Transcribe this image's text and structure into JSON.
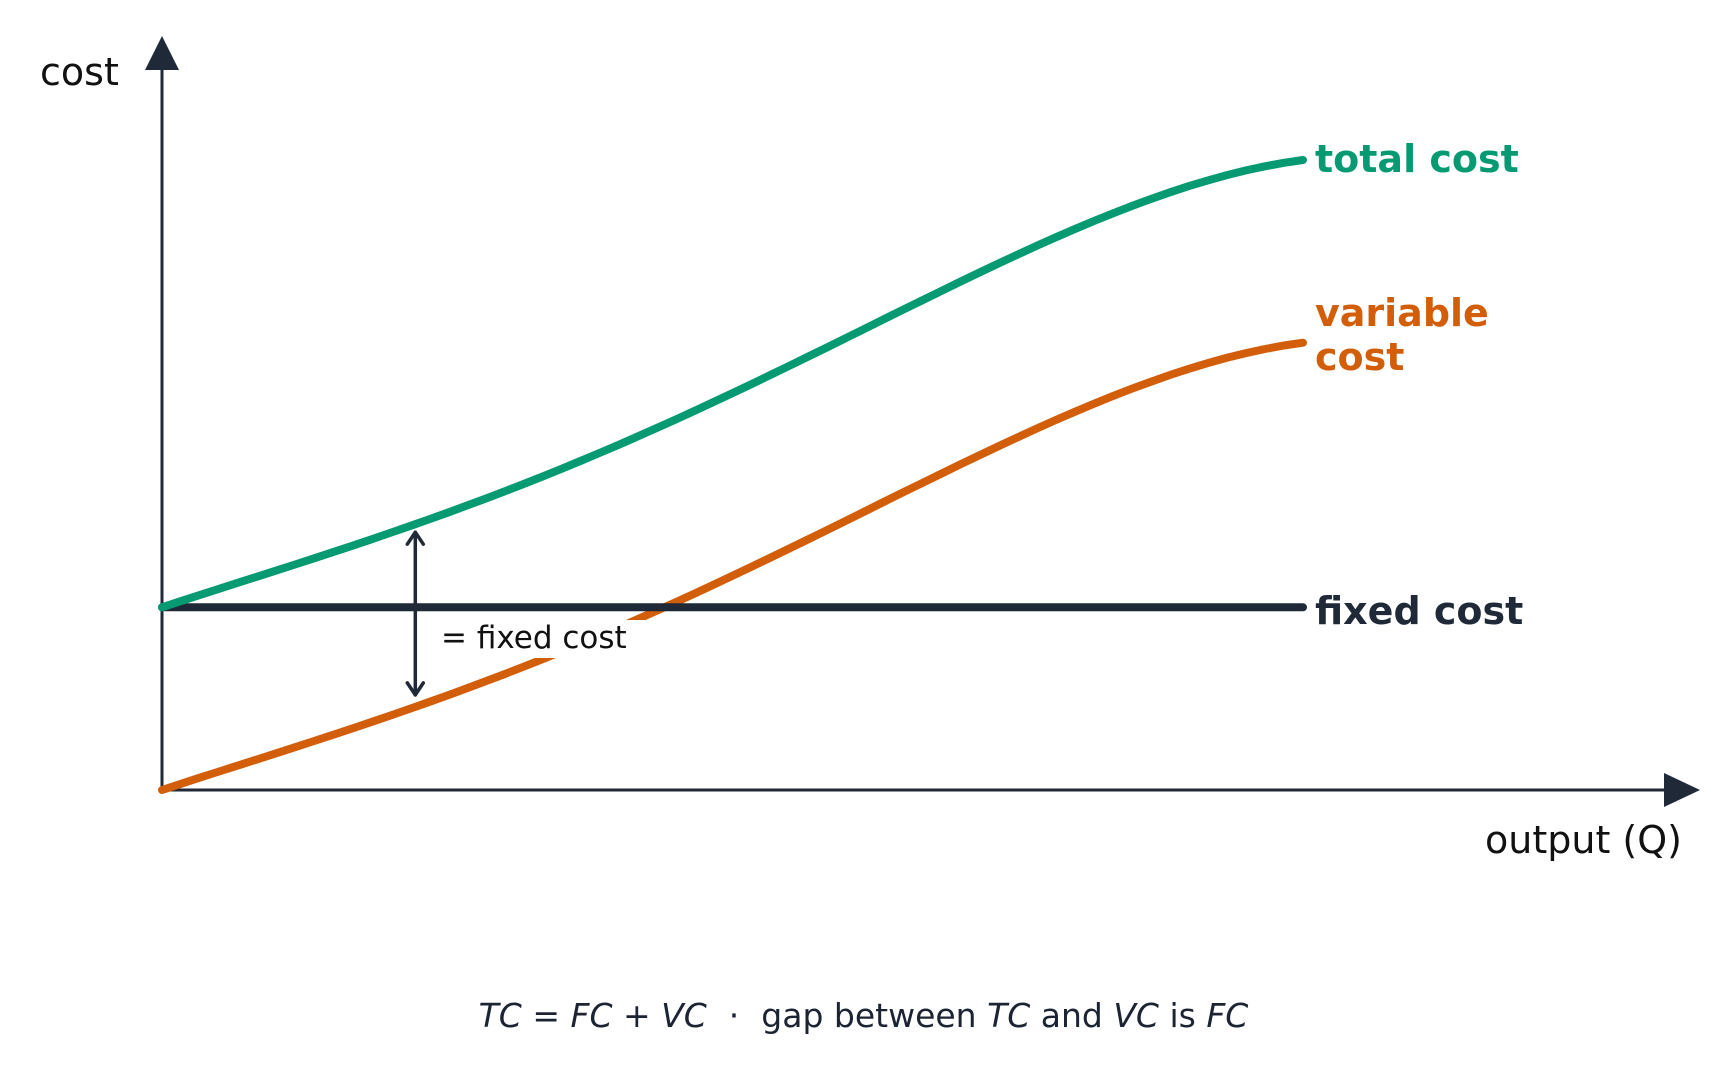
{
  "colors": {
    "axis": "#1f2937",
    "total": "#059a72",
    "variable": "#d35e0a",
    "fixed": "#1f2937"
  },
  "chart_data": {
    "type": "line",
    "ylabel": "cost",
    "xlabel": "output (Q)",
    "xlim": [
      0,
      1
    ],
    "ylim": [
      0,
      1
    ],
    "grid": false,
    "series": [
      {
        "name": "total cost",
        "color": "#059a72",
        "x": [
          0,
          0.25,
          0.5,
          0.75,
          1.0
        ],
        "y": [
          0.29,
          0.44,
          0.63,
          0.85,
          1.0
        ]
      },
      {
        "name": "variable cost",
        "color": "#d35e0a",
        "x": [
          0,
          0.25,
          0.5,
          0.75,
          1.0
        ],
        "y": [
          0.0,
          0.15,
          0.34,
          0.56,
          0.71
        ]
      },
      {
        "name": "fixed cost",
        "color": "#1f2937",
        "x": [
          0,
          1.0
        ],
        "y": [
          0.29,
          0.29
        ]
      }
    ],
    "series_labels": {
      "total": [
        "total cost"
      ],
      "variable": [
        "variable",
        "cost"
      ],
      "fixed": [
        "fixed cost"
      ]
    },
    "annotation": {
      "text": "= fixed cost",
      "at_x": 0.222
    },
    "formula": {
      "tc": "TC",
      "eq": " = ",
      "fc": "FC",
      "plus": " + ",
      "vc": "VC",
      "dot": "·",
      "gap_text": "gap between ",
      "and_text": " and ",
      "is_text": " is "
    }
  }
}
